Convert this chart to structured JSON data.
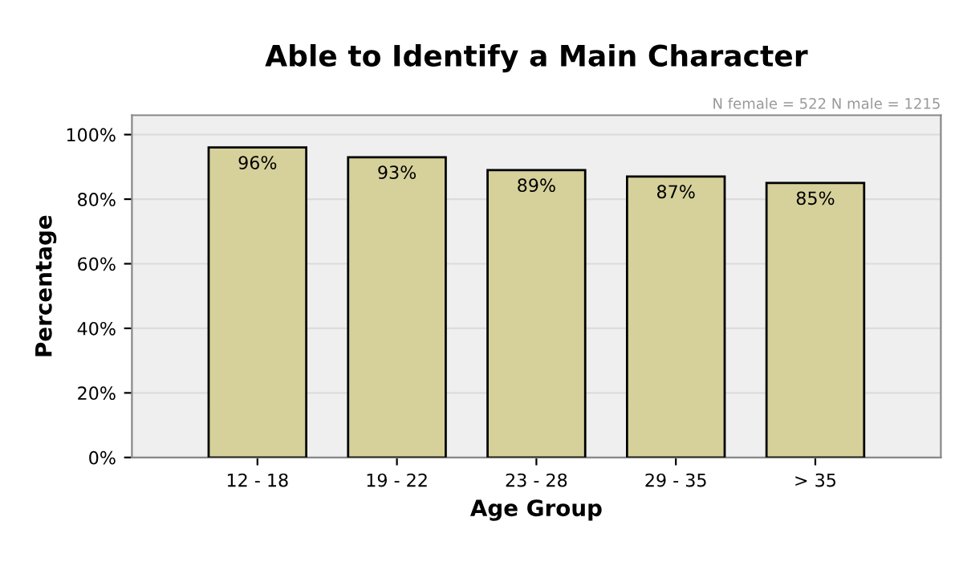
{
  "chart_data": {
    "type": "bar",
    "title": "Able to Identify a Main Character",
    "xlabel": "Age Group",
    "ylabel": "Percentage",
    "categories": [
      "12 - 18",
      "19 - 22",
      "23 - 28",
      "29 - 35",
      "> 35"
    ],
    "values": [
      96,
      93,
      89,
      87,
      85
    ],
    "value_labels": [
      "96%",
      "93%",
      "89%",
      "87%",
      "85%"
    ],
    "color": "#d6d19a",
    "ylim": [
      0,
      106
    ],
    "yticks": [
      {
        "value": 0,
        "label": "0%"
      },
      {
        "value": 20,
        "label": "20%"
      },
      {
        "value": 40,
        "label": "40%"
      },
      {
        "value": 60,
        "label": "60%"
      },
      {
        "value": 80,
        "label": "80%"
      },
      {
        "value": 100,
        "label": "100%"
      }
    ],
    "grid": "y",
    "annotations": [
      "N female = 522 N male = 1215"
    ]
  }
}
